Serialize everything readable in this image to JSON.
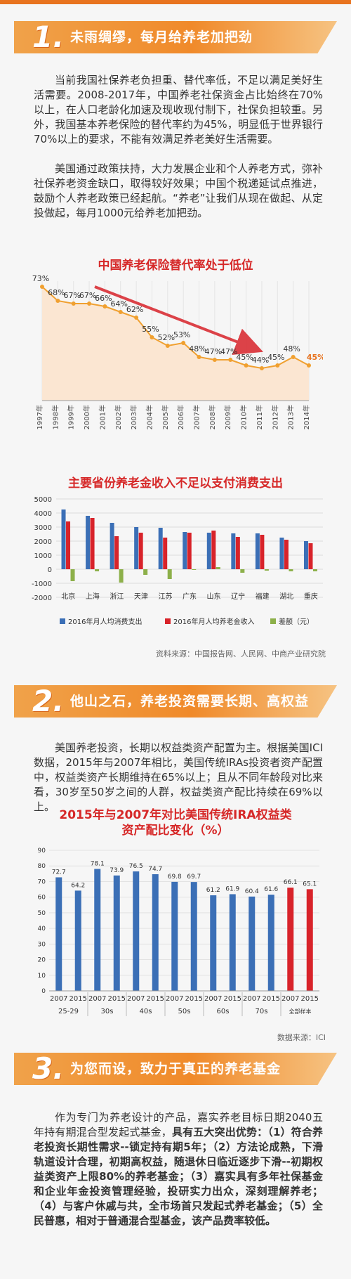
{
  "section1": {
    "number": "1.",
    "title": "未雨绸缪，每月给养老加把劲",
    "para1": "当前我国社保养老负担重、替代率低，不足以满足美好生活需要。2008-2017年，中国养老社保资金占比始终在70%以上，在人口老龄化加速及现收现付制下，社保负担较重。另外，我国基本养老保险的替代率约为45%，明显低于世界银行70%以上的要求，不能有效满足养老美好生活需要。",
    "para2": "美国通过政策扶持，大力发展企业和个人养老方式，弥补社保养老资金缺口，取得较好效果；中国个税递延试点推进，鼓励个人养老政策已经起航。“养老”让我们从现在做起、从定投做起，每月1000元给养老加把劲。"
  },
  "chart1": {
    "title": "中国养老保险替代率处于低位",
    "chart_data": {
      "type": "line",
      "title": "中国养老保险替代率处于低位",
      "categories": [
        "1997年",
        "1998年",
        "1999年",
        "2000年",
        "2001年",
        "2002年",
        "2003年",
        "2004年",
        "2005年",
        "2006年",
        "2007年",
        "2008年",
        "2009年",
        "2010年",
        "2011年",
        "2012年",
        "2013年",
        "2014年"
      ],
      "labels": [
        "73%",
        "68%",
        "67%",
        "67%",
        "66%",
        "64%",
        "62%",
        "55%",
        "52%",
        "53%",
        "48%",
        "47%",
        "47%",
        "45%",
        "44%",
        "45%",
        "48%",
        "45%"
      ],
      "values": [
        73,
        68,
        67,
        67,
        66,
        64,
        62,
        55,
        52,
        53,
        48,
        47,
        47,
        45,
        44,
        45,
        48,
        45
      ],
      "ylim": [
        40,
        75
      ],
      "line_color": "#f0a030",
      "fill_color": "#fbe6d2",
      "highlight_color": "#e8731f"
    }
  },
  "chart2": {
    "title": "主要省份养老金收入不足以支付消费支出",
    "source": "资料来源：中国报告网、人民网、中商产业研究院",
    "chart_data": {
      "type": "bar",
      "title": "主要省份养老金收入不足以支付消费支出",
      "categories": [
        "北京",
        "上海",
        "浙江",
        "天津",
        "江苏",
        "广东",
        "山东",
        "辽宁",
        "福建",
        "湖北",
        "重庆"
      ],
      "yticks": [
        "5000",
        "4000",
        "3000",
        "2000",
        "1000",
        "0",
        "-1000",
        "-2000"
      ],
      "ylim": [
        -2000,
        5000
      ],
      "series": [
        {
          "name": "2016年月人均消费支出",
          "color": "#3b6fb6",
          "values": [
            4250,
            3800,
            3300,
            3000,
            2950,
            2650,
            2600,
            2550,
            2550,
            2250,
            2000
          ]
        },
        {
          "name": "2016年月人均养老金收入",
          "color": "#d8232a",
          "values": [
            3400,
            3650,
            2350,
            2600,
            2250,
            2600,
            2750,
            2300,
            2450,
            2100,
            1850
          ]
        },
        {
          "name": "差额（元）",
          "color": "#8db04a",
          "values": [
            -850,
            -150,
            -950,
            -400,
            -700,
            -50,
            150,
            -250,
            -100,
            -150,
            -150
          ]
        }
      ]
    }
  },
  "section2": {
    "number": "2.",
    "title": "他山之石，养老投资需要长期、高权益",
    "para1": "美国养老投资，长期以权益类资产配置为主。根据美国ICI数据，2015年与2007年相比，美国传统IRAs投资者资产配置中，权益类资产长期维持在65%以上；且从不同年龄段对比来看，30岁至50岁之间的人群，权益类资产配比持续在69%以上。"
  },
  "chart3": {
    "title_line1": "2015年与2007年对比美国传统IRA权益类",
    "title_line2": "资产配比变化（%）",
    "source": "数据来源：ICI",
    "chart_data": {
      "type": "bar",
      "title": "2015年与2007年对比美国传统IRA权益类资产配比变化（%）",
      "years": [
        "2007",
        "2015",
        "2007",
        "2015",
        "2007",
        "2015",
        "2007",
        "2015",
        "2007",
        "2015",
        "2007",
        "2015",
        "2007",
        "2015"
      ],
      "groups": [
        "25-29",
        "30s",
        "40s",
        "50s",
        "60s",
        "70s",
        "全部样本"
      ],
      "labels": [
        "72.7",
        "64.2",
        "78.1",
        "73.9",
        "76.5",
        "74.7",
        "69.8",
        "69.7",
        "61.2",
        "61.9",
        "60.4",
        "61.6",
        "66.1",
        "65.1"
      ],
      "values": [
        72.7,
        64.2,
        78.1,
        73.9,
        76.5,
        74.7,
        69.8,
        69.7,
        61.2,
        61.9,
        60.4,
        61.6,
        66.1,
        65.1
      ],
      "yticks": [
        "90",
        "80",
        "70",
        "60",
        "50",
        "40",
        "30",
        "20",
        "10",
        "0"
      ],
      "ylim": [
        0,
        90
      ],
      "bar_color": "#3b6fb6",
      "highlight_color": "#d8232a"
    }
  },
  "section3": {
    "number": "3.",
    "title": "为您而设，致力于真正的养老基金",
    "para_lead": "作为专门为养老设计的产品，嘉实养老目标日期2040五年持有期混合型发起式基金，",
    "para_bold": "具有五大突出优势：（1）符合养老投资长期性需求--锁定持有期5年；（2）方法论成熟，下滑轨道设计合理，初期高权益，随退休日临近逐步下滑--初期权益类资产上限80%的养老基金；（3）嘉实具有多年社保基金和企业年金投资管理经验，投研实力出众，深刻理解养老；（4）与客户休戚与共，全市场首只发起式养老基金；（5）全民普惠，相对于普通混合型基金，该产品费率较低。"
  }
}
